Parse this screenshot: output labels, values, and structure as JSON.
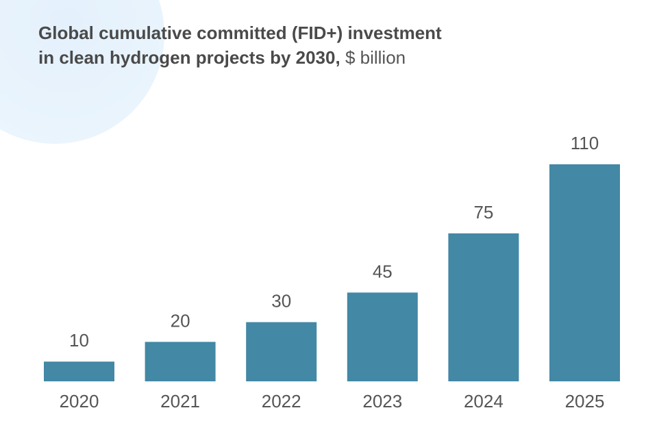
{
  "title": {
    "line1": "Global cumulative committed (FID+) investment",
    "line2": "in clean hydrogen projects by 2030,",
    "unit": "$ billion"
  },
  "chart_data": {
    "type": "bar",
    "categories": [
      "2020",
      "2021",
      "2022",
      "2023",
      "2024",
      "2025"
    ],
    "values": [
      10,
      20,
      30,
      45,
      75,
      110
    ],
    "data_labels": [
      "10",
      "20",
      "30",
      "45",
      "75",
      "110"
    ],
    "title": "Global cumulative committed (FID+) investment in clean hydrogen projects by 2030, $ billion",
    "xlabel": "",
    "ylabel": "",
    "ylim": [
      0,
      110
    ],
    "grid": false,
    "legend": "none",
    "bar_color": "#4388a5"
  }
}
